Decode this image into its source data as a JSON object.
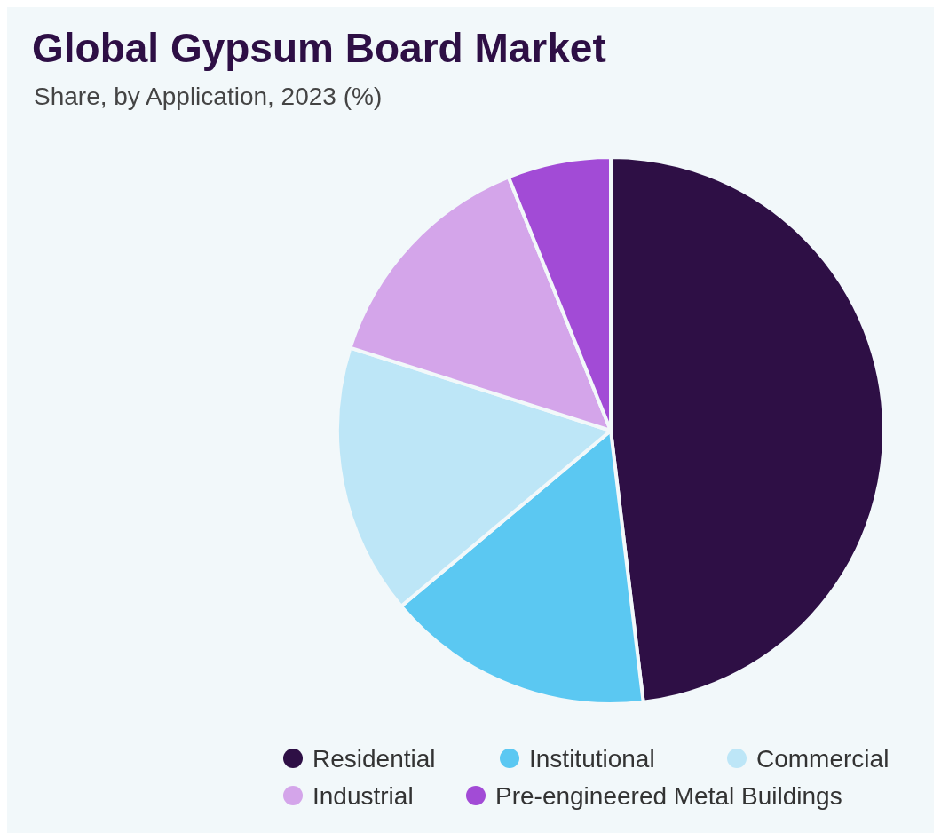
{
  "chart_data": {
    "type": "pie",
    "title": "Global Gypsum Board Market",
    "subtitle": "Share, by Application, 2023 (%)",
    "categories": [
      "Residential",
      "Institutional",
      "Commercial",
      "Industrial",
      "Pre-engineered Metal Buildings"
    ],
    "values": [
      48.1,
      15.8,
      16,
      14,
      6.1
    ],
    "colors": [
      "#2e0f45",
      "#5bc8f2",
      "#bde6f7",
      "#d4a5ea",
      "#a24bd6"
    ],
    "legend": "bottom right"
  }
}
